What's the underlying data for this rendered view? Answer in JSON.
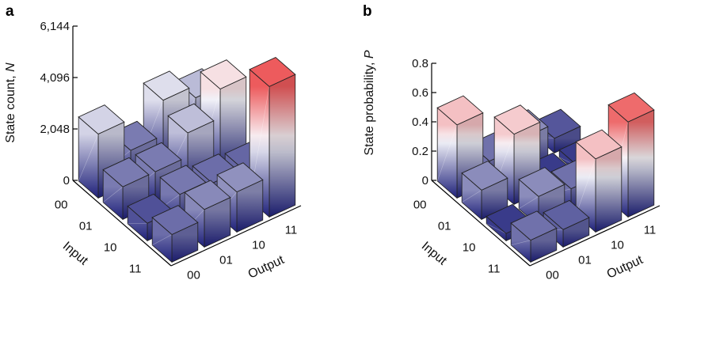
{
  "chart_data": [
    {
      "panel": "a",
      "type": "bar3d",
      "ylabel_text": "State count, ",
      "ylabel_var": "N",
      "yticks": [
        "0",
        "2,048",
        "4,096",
        "6,144"
      ],
      "ylim": [
        0,
        6144
      ],
      "input_label": "Input",
      "output_label": "Output",
      "input_categories": [
        "00",
        "01",
        "10",
        "11"
      ],
      "output_categories": [
        "00",
        "01",
        "10",
        "11"
      ],
      "values": [
        [
          2550,
          1300,
          2700,
          2200
        ],
        [
          1300,
          1300,
          2250,
          3400
        ],
        [
          700,
          1250,
          1100,
          1000
        ],
        [
          1100,
          1500,
          1600,
          5200
        ]
      ]
    },
    {
      "panel": "b",
      "type": "bar3d",
      "ylabel_text": "State probability, ",
      "ylabel_var": "P",
      "yticks": [
        "0",
        "0.2",
        "0.4",
        "0.6",
        "0.8"
      ],
      "ylim": [
        0,
        0.8
      ],
      "input_label": "Input",
      "output_label": "Output",
      "input_categories": [
        "00",
        "01",
        "10",
        "11"
      ],
      "output_categories": [
        "00",
        "01",
        "10",
        "11"
      ],
      "values": [
        [
          0.5,
          0.15,
          0.2,
          0.1
        ],
        [
          0.2,
          0.48,
          0.05,
          0.05
        ],
        [
          0.05,
          0.2,
          0.15,
          0.07
        ],
        [
          0.15,
          0.12,
          0.5,
          0.65
        ]
      ]
    }
  ]
}
